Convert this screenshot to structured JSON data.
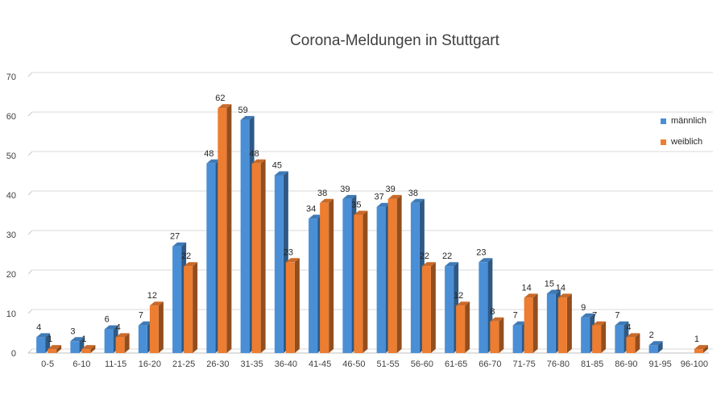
{
  "chart_data": {
    "type": "bar",
    "title": "Corona-Meldungen in Stuttgart",
    "xlabel": "",
    "ylabel": "",
    "ylim": [
      0,
      70
    ],
    "yticks": [
      0,
      10,
      20,
      30,
      40,
      50,
      60,
      70
    ],
    "grid": true,
    "legend_position": "right",
    "categories": [
      "0-5",
      "6-10",
      "11-15",
      "16-20",
      "21-25",
      "26-30",
      "31-35",
      "36-40",
      "41-45",
      "46-50",
      "51-55",
      "56-60",
      "61-65",
      "66-70",
      "71-75",
      "76-80",
      "81-85",
      "86-90",
      "91-95",
      "96-100"
    ],
    "series": [
      {
        "name": "männlich",
        "color": "#4a8fd6",
        "values": [
          4,
          3,
          6,
          7,
          27,
          48,
          59,
          45,
          34,
          39,
          37,
          38,
          22,
          23,
          7,
          15,
          9,
          7,
          2,
          0
        ]
      },
      {
        "name": "weiblich",
        "color": "#ed7d31",
        "values": [
          1,
          1,
          4,
          12,
          22,
          62,
          48,
          23,
          38,
          35,
          39,
          22,
          12,
          8,
          14,
          14,
          7,
          4,
          0,
          1
        ]
      }
    ]
  }
}
